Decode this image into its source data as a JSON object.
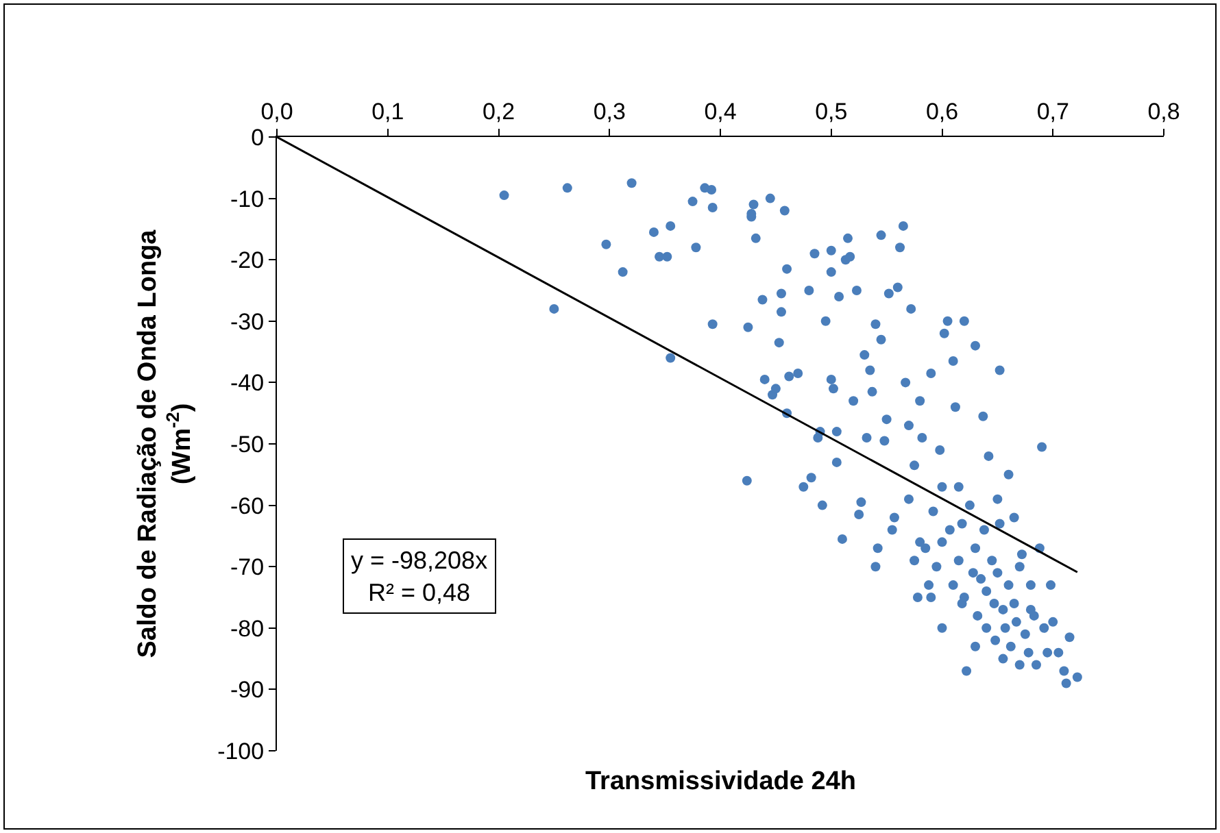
{
  "chart_data": {
    "type": "scatter",
    "xlabel": "Transmissividade 24h",
    "ylabel": "Saldo de Radiação de Onda Longa\n(Wm$^{-2}$)",
    "annotations": [
      "y = -98,208x",
      "R² = 0,48"
    ],
    "xlim": [
      0,
      0.8
    ],
    "ylim": [
      -100,
      0
    ],
    "xticks": [
      {
        "value": 0,
        "label": "0,0"
      },
      {
        "value": 0.1,
        "label": "0,1"
      },
      {
        "value": 0.2,
        "label": "0,2"
      },
      {
        "value": 0.3,
        "label": "0,3"
      },
      {
        "value": 0.4,
        "label": "0,4"
      },
      {
        "value": 0.5,
        "label": "0,5"
      },
      {
        "value": 0.6,
        "label": "0,6"
      },
      {
        "value": 0.7,
        "label": "0,7"
      },
      {
        "value": 0.8,
        "label": "0,8"
      }
    ],
    "yticks": [
      0,
      -10,
      -20,
      -30,
      -40,
      -50,
      -60,
      -70,
      -80,
      -90,
      -100
    ],
    "marker": "circle",
    "series": [
      {
        "color": "#4a7ebb",
        "x": [
          0.205,
          0.25,
          0.262,
          0.297,
          0.312,
          0.32,
          0.34,
          0.345,
          0.352,
          0.355,
          0.355,
          0.375,
          0.378,
          0.386,
          0.392,
          0.393,
          0.393,
          0.424,
          0.425,
          0.428,
          0.43,
          0.428,
          0.432,
          0.438,
          0.44,
          0.445,
          0.447,
          0.45,
          0.453,
          0.455,
          0.455,
          0.458,
          0.46,
          0.46,
          0.462,
          0.47,
          0.475,
          0.48,
          0.482,
          0.485,
          0.488,
          0.49,
          0.492,
          0.495,
          0.5,
          0.5,
          0.5,
          0.502,
          0.505,
          0.505,
          0.507,
          0.51,
          0.513,
          0.515,
          0.517,
          0.52,
          0.523,
          0.525,
          0.527,
          0.53,
          0.532,
          0.535,
          0.537,
          0.54,
          0.54,
          0.542,
          0.545,
          0.545,
          0.548,
          0.55,
          0.552,
          0.555,
          0.557,
          0.56,
          0.562,
          0.565,
          0.567,
          0.57,
          0.572,
          0.575,
          0.578,
          0.58,
          0.582,
          0.585,
          0.588,
          0.59,
          0.592,
          0.595,
          0.598,
          0.6,
          0.602,
          0.605,
          0.607,
          0.61,
          0.61,
          0.612,
          0.615,
          0.615,
          0.618,
          0.62,
          0.62,
          0.622,
          0.625,
          0.628,
          0.63,
          0.63,
          0.632,
          0.635,
          0.637,
          0.64,
          0.64,
          0.642,
          0.645,
          0.647,
          0.648,
          0.65,
          0.652,
          0.652,
          0.655,
          0.657,
          0.66,
          0.66,
          0.662,
          0.665,
          0.667,
          0.67,
          0.672,
          0.675,
          0.678,
          0.68,
          0.683,
          0.685,
          0.688,
          0.69,
          0.692,
          0.695,
          0.698,
          0.7,
          0.705,
          0.71,
          0.712,
          0.722,
          0.715,
          0.6,
          0.59,
          0.575,
          0.58,
          0.65,
          0.665,
          0.67,
          0.638,
          0.618,
          0.68,
          0.655,
          0.63,
          0.6,
          0.57
        ],
        "values": [
          -9.5,
          -28,
          -8.3,
          -17.5,
          -22,
          -7.5,
          -15.5,
          -19.5,
          -19.5,
          -14.5,
          -36,
          -10.5,
          -18,
          -8.3,
          -8.6,
          -11.5,
          -30.5,
          -56,
          -31,
          -13,
          -11,
          -12.5,
          -16.5,
          -26.5,
          -39.5,
          -10,
          -42,
          -41,
          -33.5,
          -28.5,
          -25.5,
          -12,
          -45,
          -21.5,
          -39,
          -38.5,
          -57,
          -25,
          -55.5,
          -19,
          -49,
          -48,
          -60,
          -30,
          -22,
          -18.5,
          -39.5,
          -41,
          -53,
          -48,
          -26,
          -65.5,
          -20,
          -16.5,
          -19.5,
          -43,
          -25,
          -61.5,
          -59.5,
          -35.5,
          -49,
          -38,
          -41.5,
          -30.5,
          -70,
          -67,
          -33,
          -16,
          -49.5,
          -46,
          -25.5,
          -64,
          -62,
          -24.5,
          -18,
          -14.5,
          -40,
          -47,
          -28,
          -53.5,
          -75,
          -43,
          -49,
          -67,
          -73,
          -38.5,
          -61,
          -70,
          -51,
          -80,
          -32,
          -30,
          -64,
          -73,
          -36.5,
          -44,
          -69,
          -57,
          -76,
          -75,
          -30,
          -87,
          -60,
          -71,
          -67,
          -34,
          -78,
          -72,
          -45.5,
          -80,
          -74,
          -52,
          -69,
          -76,
          -82,
          -71,
          -38,
          -63,
          -77,
          -80,
          -73,
          -55,
          -83,
          -76,
          -79,
          -86,
          -68,
          -81,
          -84,
          -73,
          -78,
          -86,
          -67,
          -50.5,
          -80,
          -84,
          -73,
          -79,
          -84,
          -87,
          -89,
          -88,
          -81.5,
          -66,
          -75,
          -69,
          -66,
          -59,
          -62,
          -70,
          -64,
          -63,
          -77,
          -85,
          -83,
          -57,
          -59
        ]
      },
      {
        "type": "line",
        "color": "#000000",
        "marker": "none",
        "line_style": "solid",
        "x": [
          0,
          0.722
        ],
        "values": [
          0,
          -70.9
        ]
      }
    ]
  }
}
